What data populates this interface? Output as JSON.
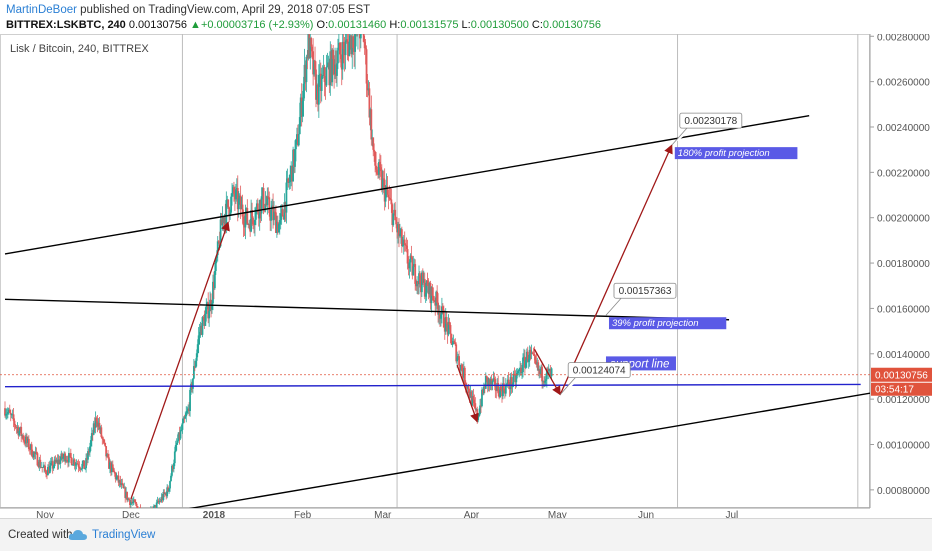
{
  "header": {
    "author": "MartinDeBoer",
    "published": "published on TradingView.com, April 29, 2018 07:05 EST"
  },
  "quote": {
    "symbol": "BITTREX:LSKBTC, 240",
    "last": "0.00130756",
    "change": "+0.00003716 (+2.93%)",
    "o_label": "O:",
    "open": "0.00131460",
    "h_label": "H:",
    "high": "0.00131575",
    "l_label": "L:",
    "low": "0.00130500",
    "c_label": "C:",
    "close": "0.00130756"
  },
  "footer": {
    "created": "Created with",
    "brand": "TradingView"
  },
  "colors": {
    "candle_up": "#26a69a",
    "candle_down": "#e05a5a",
    "support": "#2222cc",
    "arrow": "#a01818",
    "trend": "#000000",
    "price_badge": "#e0533c",
    "callout_bg": "#5a5ae6"
  },
  "chart_data": {
    "type": "candlestick",
    "instrument_label": "Lisk / Bitcoin, 240, BITTREX",
    "x_ticks": [
      "Nov",
      "Dec",
      "2018",
      "Feb",
      "Mar",
      "Apr",
      "May",
      "Jun",
      "Jul"
    ],
    "y_ticks": [
      "0.00280000",
      "0.00260000",
      "0.00240000",
      "0.00220000",
      "0.00200000",
      "0.00180000",
      "0.00160000",
      "0.00140000",
      "0.00120000",
      "0.00100000",
      "0.00080000"
    ],
    "ylim": [
      0.00072,
      0.00281
    ],
    "last_price": "0.00130756",
    "countdown": "03:54:17",
    "price_path": [
      [
        "2017-10-20",
        0.00116
      ],
      [
        "2017-10-27",
        0.00102
      ],
      [
        "2017-11-03",
        0.00088
      ],
      [
        "2017-11-10",
        0.00095
      ],
      [
        "2017-11-17",
        0.0009
      ],
      [
        "2017-11-21",
        0.00112
      ],
      [
        "2017-11-25",
        0.00092
      ],
      [
        "2017-12-02",
        0.00076
      ],
      [
        "2017-12-09",
        0.00068
      ],
      [
        "2017-12-16",
        0.0008
      ],
      [
        "2017-12-19",
        0.001
      ],
      [
        "2017-12-23",
        0.00115
      ],
      [
        "2017-12-27",
        0.0015
      ],
      [
        "2017-12-31",
        0.00163
      ],
      [
        "2018-01-04",
        0.002
      ],
      [
        "2018-01-08",
        0.0021
      ],
      [
        "2018-01-13",
        0.00198
      ],
      [
        "2018-01-18",
        0.00208
      ],
      [
        "2018-01-24",
        0.00196
      ],
      [
        "2018-01-30",
        0.00232
      ],
      [
        "2018-02-03",
        0.00278
      ],
      [
        "2018-02-06",
        0.00255
      ],
      [
        "2018-02-10",
        0.00265
      ],
      [
        "2018-02-16",
        0.00275
      ],
      [
        "2018-02-22",
        0.00285
      ],
      [
        "2018-02-26",
        0.00224
      ],
      [
        "2018-03-03",
        0.00208
      ],
      [
        "2018-03-06",
        0.00195
      ],
      [
        "2018-03-10",
        0.0018
      ],
      [
        "2018-03-14",
        0.00172
      ],
      [
        "2018-03-19",
        0.00165
      ],
      [
        "2018-03-24",
        0.0015
      ],
      [
        "2018-03-29",
        0.00132
      ],
      [
        "2018-04-03",
        0.00112
      ],
      [
        "2018-04-06",
        0.00128
      ],
      [
        "2018-04-11",
        0.00124
      ],
      [
        "2018-04-16",
        0.00128
      ],
      [
        "2018-04-21",
        0.0014
      ],
      [
        "2018-04-25",
        0.00131
      ],
      [
        "2018-04-29",
        0.00130756
      ]
    ],
    "annotations": [
      {
        "kind": "trendline",
        "name": "upper-channel",
        "from": [
          "2017-10-20",
          0.00184
        ],
        "to": [
          "2018-07-28",
          0.00245
        ]
      },
      {
        "kind": "trendline",
        "name": "lower-channel",
        "from": [
          "2017-12-20",
          0.00071
        ],
        "to": [
          "2018-08-20",
          0.00123
        ]
      },
      {
        "kind": "trendline",
        "name": "resistance",
        "from": [
          "2017-10-20",
          0.00164
        ],
        "to": [
          "2018-06-30",
          0.00155
        ]
      },
      {
        "kind": "support",
        "label": "support line",
        "from": [
          "2017-10-20",
          0.001255
        ],
        "to": [
          "2018-08-15",
          0.001265
        ]
      },
      {
        "kind": "arrow",
        "from": [
          "2017-12-03",
          0.00076
        ],
        "to": [
          "2018-01-06",
          0.00198
        ]
      },
      {
        "kind": "arrow",
        "from": [
          "2018-03-27",
          0.00135
        ],
        "to": [
          "2018-04-03",
          0.0011
        ]
      },
      {
        "kind": "arrow",
        "from": [
          "2018-04-23",
          0.00142
        ],
        "to": [
          "2018-05-02",
          0.00122
        ]
      },
      {
        "kind": "arrow",
        "from": [
          "2018-05-02",
          0.00122
        ],
        "to": [
          "2018-06-10",
          0.00232
        ]
      },
      {
        "kind": "callout",
        "value": "0.00230178",
        "label": "180% profit projection",
        "at": [
          "2018-06-10",
          0.00232
        ]
      },
      {
        "kind": "callout",
        "value": "0.00157363",
        "label": "39% profit projection",
        "at": [
          "2018-05-18",
          0.00157
        ]
      },
      {
        "kind": "callout",
        "value": "0.00124074",
        "label": "",
        "at": [
          "2018-05-02",
          0.00122
        ]
      }
    ]
  }
}
